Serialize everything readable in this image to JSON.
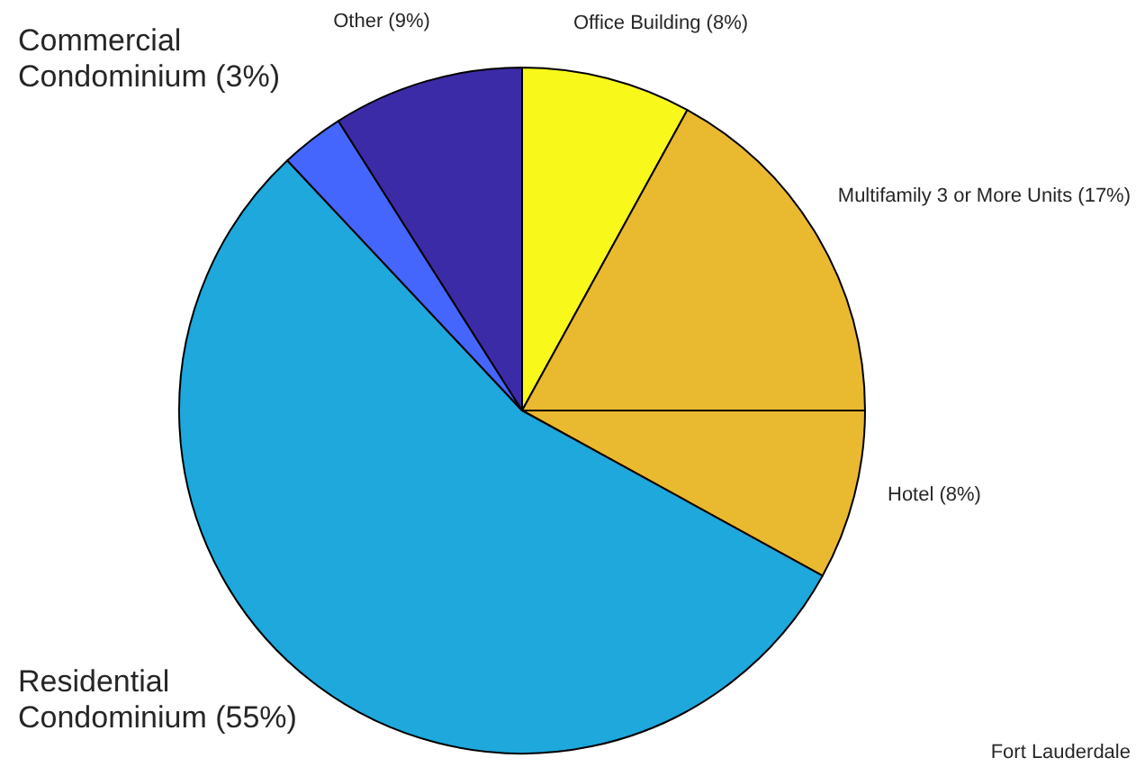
{
  "chart_data": {
    "type": "pie",
    "categories": [
      "Office Building (8%)",
      "Multifamily 3 or More Units (17%)",
      "Hotel (8%)",
      "Residential Condominium (55%)",
      "Commercial Condominium (3%)",
      "Other (9%)"
    ],
    "values": [
      8,
      17,
      8,
      55,
      3,
      9
    ],
    "colors": [
      "#f8f81a",
      "#e9b930",
      "#e9b930",
      "#1ea8dc",
      "#4466fc",
      "#3c2ba6"
    ],
    "annotations": [
      "Fort Lauderdale"
    ]
  }
}
